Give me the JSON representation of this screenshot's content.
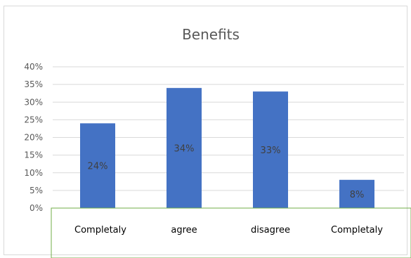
{
  "chart_data": {
    "type": "bar",
    "title": "Benefits",
    "categories": [
      "Completaly",
      "agree",
      "disagree",
      "Completaly"
    ],
    "values": [
      24,
      34,
      33,
      8
    ],
    "data_labels": [
      "24%",
      "34%",
      "33%",
      "8%"
    ],
    "yticks": [
      "0%",
      "5%",
      "10%",
      "15%",
      "20%",
      "25%",
      "30%",
      "35%",
      "40%"
    ],
    "ylim": [
      0,
      40
    ],
    "grid": true,
    "legend": "none",
    "bar_color": "#4472c4",
    "grid_color": "#d9d9d9",
    "category_box_color": "#70ad47"
  }
}
